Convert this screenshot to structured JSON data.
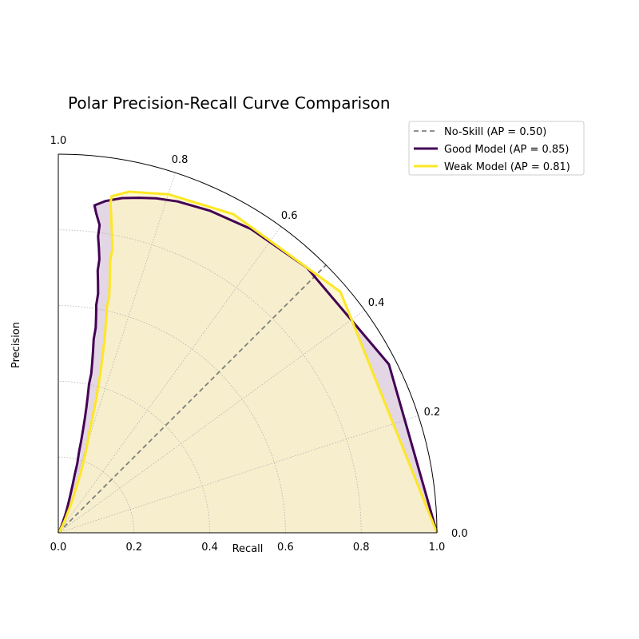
{
  "chart_data": {
    "type": "line",
    "projection": "polar-quadrant",
    "title": "Polar Precision-Recall Curve Comparison",
    "xlabel": "Recall",
    "ylabel": "Precision",
    "xlim": [
      0.0,
      1.0
    ],
    "ylim": [
      0.0,
      1.0
    ],
    "x_ticks": [
      "0.0",
      "0.2",
      "0.4",
      "0.6",
      "0.8",
      "1.0"
    ],
    "angle_ticks": [
      "0.0",
      "0.2",
      "0.4",
      "0.6",
      "0.8",
      "1.0"
    ],
    "grid": true,
    "legend": "top-right",
    "series": [
      {
        "name": "No-Skill (AP = 0.50)",
        "color": "#808080",
        "style": "dashed",
        "points": [
          [
            0.0,
            0.5
          ],
          [
            0.1,
            0.5
          ],
          [
            0.2,
            0.5
          ],
          [
            0.3,
            0.5
          ],
          [
            0.4,
            0.5
          ],
          [
            0.5,
            0.5
          ],
          [
            0.6,
            0.5
          ],
          [
            0.7,
            0.5
          ],
          [
            0.8,
            0.5
          ],
          [
            0.9,
            0.5
          ],
          [
            1.0,
            0.5
          ]
        ]
      },
      {
        "name": "Good Model (AP = 0.85)",
        "color": "#440154",
        "fill": "#d9c8dc",
        "style": "solid",
        "points": [
          [
            0.0,
            0.64
          ],
          [
            0.002,
            0.66
          ],
          [
            0.005,
            0.68
          ],
          [
            0.01,
            0.7
          ],
          [
            0.02,
            0.72
          ],
          [
            0.03,
            0.74
          ],
          [
            0.05,
            0.76
          ],
          [
            0.07,
            0.78
          ],
          [
            0.1,
            0.8
          ],
          [
            0.13,
            0.815
          ],
          [
            0.16,
            0.825
          ],
          [
            0.19,
            0.83
          ],
          [
            0.22,
            0.84
          ],
          [
            0.25,
            0.845
          ],
          [
            0.28,
            0.85
          ],
          [
            0.31,
            0.855
          ],
          [
            0.34,
            0.86
          ],
          [
            0.37,
            0.865
          ],
          [
            0.4,
            0.87
          ],
          [
            0.43,
            0.87
          ],
          [
            0.46,
            0.875
          ],
          [
            0.49,
            0.88
          ],
          [
            0.52,
            0.885
          ],
          [
            0.55,
            0.885
          ],
          [
            0.58,
            0.89
          ],
          [
            0.61,
            0.895
          ],
          [
            0.64,
            0.895
          ],
          [
            0.67,
            0.9
          ],
          [
            0.7,
            0.905
          ],
          [
            0.73,
            0.905
          ],
          [
            0.76,
            0.91
          ],
          [
            0.79,
            0.915
          ],
          [
            0.82,
            0.915
          ],
          [
            0.85,
            0.925
          ],
          [
            0.87,
            0.93
          ],
          [
            0.885,
            0.91
          ],
          [
            0.9,
            0.88
          ],
          [
            0.91,
            0.85
          ],
          [
            0.92,
            0.82
          ],
          [
            0.93,
            0.78
          ],
          [
            0.94,
            0.72
          ],
          [
            0.95,
            0.64
          ],
          [
            0.96,
            0.52
          ],
          [
            0.98,
            0.3
          ],
          [
            1.0,
            0.0
          ]
        ]
      },
      {
        "name": "Weak Model (AP = 0.81)",
        "color": "#fde725",
        "fill": "#fdf6c4",
        "style": "solid",
        "points": [
          [
            0.0,
            0.5
          ],
          [
            0.002,
            0.56
          ],
          [
            0.006,
            0.6
          ],
          [
            0.012,
            0.63
          ],
          [
            0.02,
            0.66
          ],
          [
            0.035,
            0.69
          ],
          [
            0.05,
            0.715
          ],
          [
            0.07,
            0.73
          ],
          [
            0.1,
            0.745
          ],
          [
            0.13,
            0.76
          ],
          [
            0.16,
            0.77
          ],
          [
            0.19,
            0.78
          ],
          [
            0.22,
            0.79
          ],
          [
            0.25,
            0.8
          ],
          [
            0.28,
            0.81
          ],
          [
            0.31,
            0.815
          ],
          [
            0.34,
            0.82
          ],
          [
            0.37,
            0.825
          ],
          [
            0.4,
            0.83
          ],
          [
            0.43,
            0.835
          ],
          [
            0.46,
            0.84
          ],
          [
            0.49,
            0.845
          ],
          [
            0.52,
            0.85
          ],
          [
            0.55,
            0.855
          ],
          [
            0.58,
            0.86
          ],
          [
            0.61,
            0.865
          ],
          [
            0.64,
            0.865
          ],
          [
            0.67,
            0.87
          ],
          [
            0.7,
            0.875
          ],
          [
            0.73,
            0.88
          ],
          [
            0.76,
            0.88
          ],
          [
            0.79,
            0.885
          ],
          [
            0.82,
            0.89
          ],
          [
            0.85,
            0.895
          ],
          [
            0.88,
            0.9
          ],
          [
            0.9,
            0.9
          ],
          [
            0.92,
            0.87
          ],
          [
            0.94,
            0.8
          ],
          [
            0.96,
            0.68
          ],
          [
            0.98,
            0.45
          ],
          [
            1.0,
            0.0
          ]
        ]
      }
    ]
  }
}
